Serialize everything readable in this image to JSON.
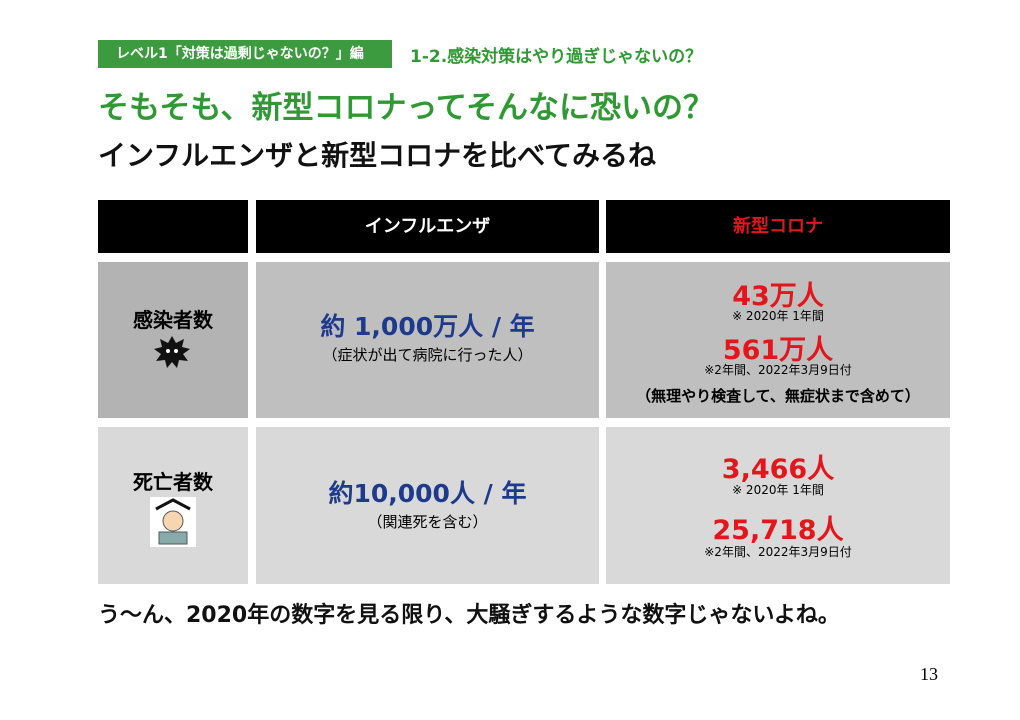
{
  "header": {
    "tag": "レベル1「対策は過剰じゃないの？」編",
    "section": "1-2.感染対策はやり過ぎじゃないの？",
    "title": "そもそも、新型コロナってそんなに恐いの？",
    "subtitle": "インフルエンザと新型コロナを比べてみるね"
  },
  "table": {
    "columns": [
      "インフルエンザ",
      "新型コロナ"
    ],
    "rows": [
      {
        "label": "感染者数",
        "influenza": {
          "main": "約 1,000万人 / 年",
          "note": "（症状が出て病院に行った人）"
        },
        "corona": [
          {
            "main": "43万人",
            "note": "※ 2020年 1年間"
          },
          {
            "main": "561万人",
            "note": "※2年間、2022年3月9日付"
          }
        ],
        "corona_note": "（無理やり検査して、無症状まで含めて）"
      },
      {
        "label": "死亡者数",
        "influenza": {
          "main": "約10,000人 / 年",
          "note": "（関連死を含む）"
        },
        "corona": [
          {
            "main": "3,466人",
            "note": "※ 2020年 1年間"
          },
          {
            "main": "25,718人",
            "note": "※2年間、2022年3月9日付"
          }
        ]
      }
    ]
  },
  "footer": "う〜ん、2020年の数字を見る限り、大騒ぎするような数字じゃないよね。",
  "page_number": "13"
}
